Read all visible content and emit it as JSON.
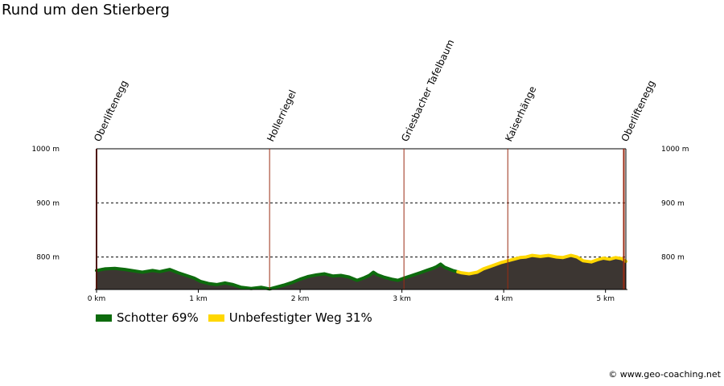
{
  "title": "Rund um den Stierberg",
  "copyright": "© www.geo-coaching.net",
  "chart_data": {
    "type": "area",
    "x_unit": "km",
    "y_unit": "m",
    "xlim": [
      0,
      5.2
    ],
    "ylim": [
      740,
      1000
    ],
    "grid": "dashed",
    "x_ticks": [
      {
        "value": 0,
        "label": "0 km"
      },
      {
        "value": 1,
        "label": "1 km"
      },
      {
        "value": 2,
        "label": "2 km"
      },
      {
        "value": 3,
        "label": "3 km"
      },
      {
        "value": 4,
        "label": "4 km"
      },
      {
        "value": 5,
        "label": "5 km"
      }
    ],
    "y_ticks": [
      {
        "value": 800,
        "label": "800 m"
      },
      {
        "value": 900,
        "label": "900 m"
      },
      {
        "value": 1000,
        "label": "1000 m"
      }
    ],
    "waypoints": [
      {
        "name": "Oberliftenegg",
        "x": 0.0
      },
      {
        "name": "Hollerriegel",
        "x": 1.7
      },
      {
        "name": "Griesbacher Tafelbaum",
        "x": 3.02
      },
      {
        "name": "Kaiserhänge",
        "x": 4.04
      },
      {
        "name": "Oberliftenegg",
        "x": 5.18
      }
    ],
    "legend": [
      {
        "name": "Schotter 69%",
        "color": "#0d6b0d"
      },
      {
        "name": "Unbefestigter Weg 31%",
        "color": "#ffd700"
      }
    ],
    "surface_segments": [
      {
        "from": 0.0,
        "to": 3.55,
        "surface": "Schotter 69%",
        "color": "#0d6b0d"
      },
      {
        "from": 3.55,
        "to": 5.2,
        "surface": "Unbefestigter Weg 31%",
        "color": "#ffd700"
      }
    ],
    "profile": [
      [
        0.0,
        775
      ],
      [
        0.08,
        778
      ],
      [
        0.18,
        779
      ],
      [
        0.28,
        777
      ],
      [
        0.38,
        774
      ],
      [
        0.45,
        772
      ],
      [
        0.55,
        775
      ],
      [
        0.62,
        773
      ],
      [
        0.72,
        777
      ],
      [
        0.8,
        771
      ],
      [
        0.88,
        766
      ],
      [
        0.96,
        761
      ],
      [
        1.02,
        755
      ],
      [
        1.1,
        751
      ],
      [
        1.18,
        749
      ],
      [
        1.26,
        752
      ],
      [
        1.34,
        749
      ],
      [
        1.42,
        744
      ],
      [
        1.52,
        742
      ],
      [
        1.62,
        744
      ],
      [
        1.7,
        741
      ],
      [
        1.76,
        744
      ],
      [
        1.84,
        748
      ],
      [
        1.92,
        753
      ],
      [
        2.0,
        759
      ],
      [
        2.08,
        764
      ],
      [
        2.16,
        767
      ],
      [
        2.24,
        769
      ],
      [
        2.32,
        765
      ],
      [
        2.4,
        766
      ],
      [
        2.48,
        763
      ],
      [
        2.56,
        757
      ],
      [
        2.62,
        761
      ],
      [
        2.68,
        766
      ],
      [
        2.72,
        772
      ],
      [
        2.76,
        767
      ],
      [
        2.82,
        763
      ],
      [
        2.9,
        759
      ],
      [
        2.96,
        757
      ],
      [
        3.02,
        761
      ],
      [
        3.1,
        766
      ],
      [
        3.18,
        771
      ],
      [
        3.24,
        775
      ],
      [
        3.3,
        779
      ],
      [
        3.34,
        782
      ],
      [
        3.38,
        787
      ],
      [
        3.42,
        781
      ],
      [
        3.5,
        775
      ],
      [
        3.58,
        771
      ],
      [
        3.66,
        769
      ],
      [
        3.74,
        772
      ],
      [
        3.8,
        778
      ],
      [
        3.86,
        782
      ],
      [
        3.92,
        786
      ],
      [
        3.98,
        790
      ],
      [
        4.04,
        793
      ],
      [
        4.1,
        796
      ],
      [
        4.16,
        799
      ],
      [
        4.22,
        800
      ],
      [
        4.28,
        803
      ],
      [
        4.36,
        801
      ],
      [
        4.44,
        803
      ],
      [
        4.52,
        800
      ],
      [
        4.58,
        799
      ],
      [
        4.66,
        803
      ],
      [
        4.72,
        800
      ],
      [
        4.78,
        793
      ],
      [
        4.86,
        791
      ],
      [
        4.92,
        795
      ],
      [
        4.98,
        798
      ],
      [
        5.04,
        796
      ],
      [
        5.1,
        799
      ],
      [
        5.16,
        797
      ],
      [
        5.2,
        792
      ]
    ]
  }
}
